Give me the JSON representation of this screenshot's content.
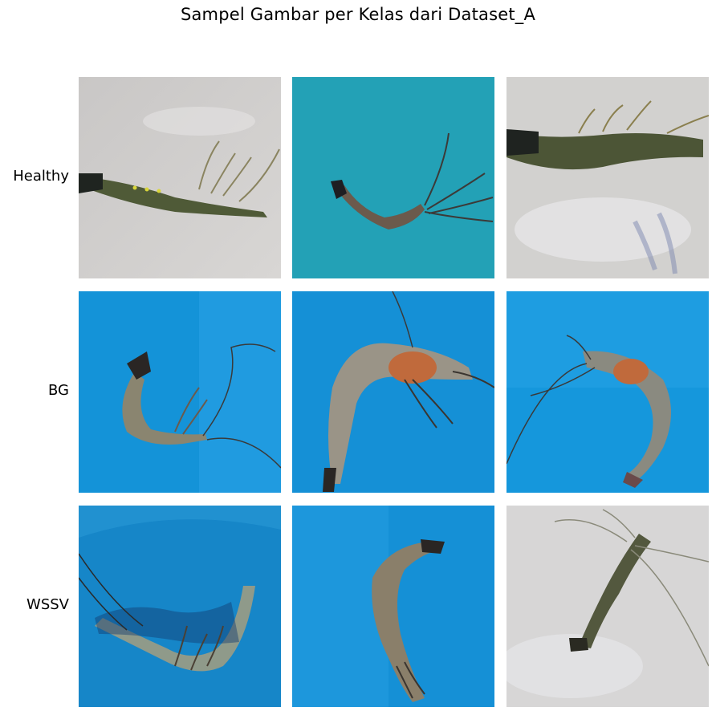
{
  "title": "Sampel Gambar per Kelas dari Dataset_A",
  "rows": [
    {
      "label": "Healthy"
    },
    {
      "label": "BG"
    },
    {
      "label": "WSSV"
    }
  ],
  "colors": {
    "gray_background": "#cfcdcb",
    "teal_background": "#1f9db3",
    "blue_background": "#1493d8",
    "healthy_shrimp": "#4f5a37",
    "bg_shrimp": "#8a8570",
    "bg_head_orange": "#c06a3c",
    "wssv_shrimp": "#7f8a7a"
  }
}
